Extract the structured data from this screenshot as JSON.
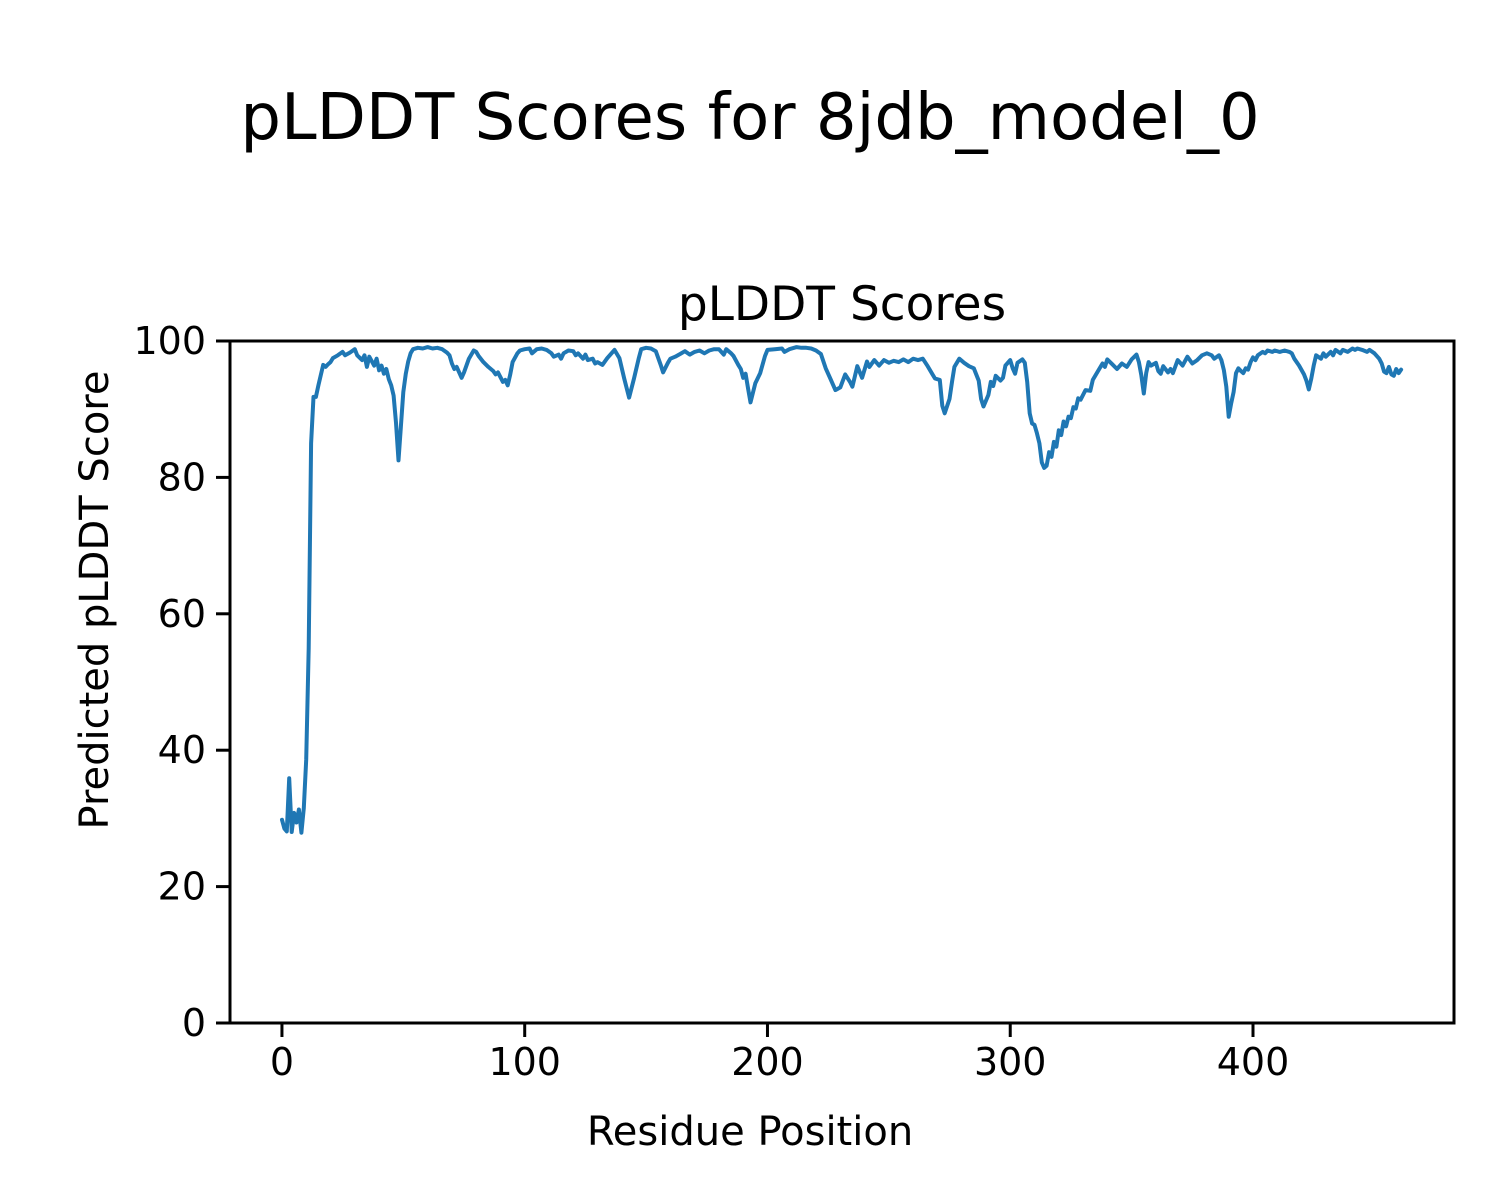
{
  "figure": {
    "title": "pLDDT Scores for 8jdb_model_0",
    "background_color": "#ffffff",
    "text_color": "#000000"
  },
  "chart_data": {
    "type": "line",
    "title": "pLDDT Scores",
    "xlabel": "Residue Position",
    "ylabel": "Predicted pLDDT Score",
    "xlim": [
      -21.4,
      482.8
    ],
    "ylim": [
      0,
      100
    ],
    "xticks": [
      0,
      100,
      200,
      300,
      400
    ],
    "yticks": [
      0,
      20,
      40,
      60,
      80,
      100
    ],
    "grid": false,
    "legend": false,
    "axes_color": "#000000",
    "tick_length": 14,
    "series": [
      {
        "name": "pLDDT",
        "color": "#1f77b4",
        "line_width": 4,
        "points": [
          [
            0,
            29.8
          ],
          [
            1,
            28.5
          ],
          [
            2,
            28.1
          ],
          [
            3,
            35.9
          ],
          [
            4,
            28.0
          ],
          [
            5,
            30.8
          ],
          [
            6,
            29.4
          ],
          [
            7,
            31.3
          ],
          [
            8,
            27.9
          ],
          [
            9,
            31.5
          ],
          [
            10,
            38.6
          ],
          [
            11,
            55.0
          ],
          [
            12,
            85.0
          ],
          [
            13,
            91.8
          ],
          [
            14,
            91.8
          ],
          [
            15,
            93.5
          ],
          [
            16,
            95.0
          ],
          [
            17,
            96.5
          ],
          [
            18,
            96.2
          ],
          [
            19,
            96.6
          ],
          [
            20,
            96.9
          ],
          [
            21,
            97.5
          ],
          [
            23,
            97.9
          ],
          [
            25,
            98.4
          ],
          [
            26,
            97.9
          ],
          [
            28,
            98.3
          ],
          [
            30,
            98.8
          ],
          [
            31,
            97.9
          ],
          [
            33,
            97.2
          ],
          [
            34,
            97.9
          ],
          [
            35,
            96.2
          ],
          [
            36,
            97.7
          ],
          [
            38,
            96.4
          ],
          [
            39,
            97.4
          ],
          [
            40,
            95.7
          ],
          [
            41,
            96.4
          ],
          [
            42,
            95.2
          ],
          [
            43,
            95.9
          ],
          [
            44,
            94.4
          ],
          [
            45,
            93.5
          ],
          [
            46,
            92.0
          ],
          [
            47,
            88.0
          ],
          [
            48,
            82.5
          ],
          [
            49,
            87.5
          ],
          [
            50,
            92.5
          ],
          [
            51,
            95.2
          ],
          [
            52,
            97.0
          ],
          [
            53,
            98.2
          ],
          [
            54,
            98.8
          ],
          [
            56,
            99.0
          ],
          [
            58,
            98.9
          ],
          [
            60,
            99.1
          ],
          [
            62,
            98.9
          ],
          [
            64,
            99.0
          ],
          [
            66,
            98.8
          ],
          [
            68,
            98.3
          ],
          [
            69,
            97.9
          ],
          [
            70,
            96.7
          ],
          [
            71,
            95.9
          ],
          [
            72,
            96.2
          ],
          [
            74,
            94.6
          ],
          [
            75,
            95.4
          ],
          [
            77,
            97.4
          ],
          [
            79,
            98.6
          ],
          [
            80,
            98.4
          ],
          [
            81,
            97.8
          ],
          [
            83,
            96.9
          ],
          [
            85,
            96.2
          ],
          [
            87,
            95.6
          ],
          [
            88,
            95.1
          ],
          [
            89,
            95.4
          ],
          [
            91,
            94.0
          ],
          [
            92,
            94.3
          ],
          [
            93,
            93.5
          ],
          [
            94,
            95.0
          ],
          [
            95,
            96.9
          ],
          [
            97,
            98.2
          ],
          [
            98,
            98.6
          ],
          [
            100,
            98.8
          ],
          [
            102,
            98.9
          ],
          [
            103,
            98.2
          ],
          [
            105,
            98.8
          ],
          [
            107,
            98.9
          ],
          [
            109,
            98.7
          ],
          [
            111,
            98.2
          ],
          [
            112,
            97.7
          ],
          [
            114,
            98.0
          ],
          [
            115,
            97.4
          ],
          [
            116,
            98.2
          ],
          [
            118,
            98.6
          ],
          [
            120,
            98.5
          ],
          [
            121,
            97.9
          ],
          [
            122,
            98.2
          ],
          [
            124,
            97.4
          ],
          [
            125,
            98.0
          ],
          [
            126,
            97.2
          ],
          [
            128,
            97.4
          ],
          [
            129,
            96.7
          ],
          [
            130,
            96.9
          ],
          [
            132,
            96.5
          ],
          [
            134,
            97.5
          ],
          [
            137,
            98.7
          ],
          [
            139,
            97.5
          ],
          [
            141,
            94.5
          ],
          [
            143,
            91.7
          ],
          [
            145,
            94.5
          ],
          [
            147,
            97.5
          ],
          [
            148,
            98.8
          ],
          [
            150,
            99.0
          ],
          [
            152,
            98.9
          ],
          [
            154,
            98.5
          ],
          [
            156,
            96.5
          ],
          [
            157,
            95.4
          ],
          [
            159,
            96.8
          ],
          [
            160,
            97.4
          ],
          [
            162,
            97.7
          ],
          [
            164,
            98.1
          ],
          [
            166,
            98.5
          ],
          [
            168,
            98.0
          ],
          [
            170,
            98.4
          ],
          [
            172,
            98.6
          ],
          [
            174,
            98.2
          ],
          [
            176,
            98.6
          ],
          [
            178,
            98.8
          ],
          [
            180,
            98.8
          ],
          [
            182,
            98.0
          ],
          [
            183,
            98.8
          ],
          [
            185,
            98.2
          ],
          [
            186,
            97.8
          ],
          [
            188,
            96.5
          ],
          [
            189,
            95.9
          ],
          [
            190,
            94.6
          ],
          [
            191,
            95.2
          ],
          [
            192,
            93.0
          ],
          [
            193,
            91.0
          ],
          [
            195,
            93.8
          ],
          [
            197,
            95.3
          ],
          [
            199,
            97.8
          ],
          [
            200,
            98.7
          ],
          [
            203,
            98.8
          ],
          [
            206,
            98.9
          ],
          [
            207,
            98.4
          ],
          [
            209,
            98.8
          ],
          [
            212,
            99.1
          ],
          [
            214,
            99.0
          ],
          [
            216,
            99.0
          ],
          [
            218,
            98.9
          ],
          [
            220,
            98.6
          ],
          [
            222,
            98.1
          ],
          [
            224,
            96.0
          ],
          [
            226,
            94.4
          ],
          [
            228,
            92.8
          ],
          [
            230,
            93.2
          ],
          [
            232,
            95.1
          ],
          [
            234,
            94.0
          ],
          [
            235,
            93.3
          ],
          [
            237,
            96.3
          ],
          [
            239,
            94.6
          ],
          [
            241,
            97.0
          ],
          [
            242,
            96.2
          ],
          [
            244,
            97.2
          ],
          [
            246,
            96.4
          ],
          [
            248,
            97.2
          ],
          [
            250,
            96.8
          ],
          [
            252,
            97.1
          ],
          [
            254,
            96.9
          ],
          [
            256,
            97.3
          ],
          [
            258,
            96.9
          ],
          [
            260,
            97.4
          ],
          [
            262,
            97.2
          ],
          [
            264,
            97.4
          ],
          [
            266,
            96.3
          ],
          [
            268,
            95.1
          ],
          [
            269,
            94.5
          ],
          [
            271,
            94.3
          ],
          [
            272,
            90.5
          ],
          [
            273,
            89.4
          ],
          [
            275,
            91.5
          ],
          [
            276,
            94.0
          ],
          [
            277,
            96.2
          ],
          [
            279,
            97.4
          ],
          [
            281,
            96.8
          ],
          [
            283,
            96.3
          ],
          [
            285,
            96.0
          ],
          [
            287,
            94.2
          ],
          [
            288,
            91.5
          ],
          [
            289,
            90.4
          ],
          [
            291,
            92.1
          ],
          [
            292,
            94.0
          ],
          [
            293,
            93.4
          ],
          [
            294,
            94.9
          ],
          [
            296,
            94.2
          ],
          [
            297,
            94.6
          ],
          [
            298,
            96.4
          ],
          [
            300,
            97.2
          ],
          [
            301,
            96.0
          ],
          [
            302,
            95.2
          ],
          [
            303,
            96.8
          ],
          [
            305,
            97.3
          ],
          [
            306,
            96.8
          ],
          [
            307,
            94.0
          ],
          [
            308,
            89.4
          ],
          [
            309,
            87.9
          ],
          [
            310,
            87.7
          ],
          [
            311,
            86.5
          ],
          [
            312,
            85.0
          ],
          [
            313,
            82.2
          ],
          [
            314,
            81.4
          ],
          [
            315,
            81.7
          ],
          [
            316,
            83.7
          ],
          [
            317,
            83.0
          ],
          [
            318,
            85.2
          ],
          [
            319,
            84.5
          ],
          [
            320,
            86.9
          ],
          [
            321,
            86.2
          ],
          [
            322,
            88.2
          ],
          [
            323,
            87.5
          ],
          [
            324,
            88.9
          ],
          [
            325,
            88.7
          ],
          [
            326,
            90.3
          ],
          [
            327,
            90.1
          ],
          [
            328,
            91.6
          ],
          [
            329,
            91.4
          ],
          [
            331,
            92.8
          ],
          [
            333,
            92.7
          ],
          [
            334,
            94.3
          ],
          [
            336,
            95.5
          ],
          [
            338,
            96.7
          ],
          [
            339,
            96.2
          ],
          [
            340,
            97.3
          ],
          [
            342,
            96.6
          ],
          [
            344,
            95.9
          ],
          [
            346,
            96.7
          ],
          [
            348,
            96.2
          ],
          [
            350,
            97.3
          ],
          [
            352,
            98.0
          ],
          [
            353,
            96.9
          ],
          [
            354,
            95.0
          ],
          [
            355,
            92.3
          ],
          [
            356,
            95.3
          ],
          [
            357,
            96.9
          ],
          [
            358,
            96.4
          ],
          [
            360,
            96.8
          ],
          [
            361,
            95.6
          ],
          [
            362,
            95.2
          ],
          [
            363,
            96.3
          ],
          [
            365,
            95.4
          ],
          [
            366,
            95.9
          ],
          [
            367,
            95.3
          ],
          [
            369,
            97.2
          ],
          [
            371,
            96.4
          ],
          [
            373,
            97.7
          ],
          [
            375,
            96.7
          ],
          [
            377,
            97.2
          ],
          [
            379,
            97.9
          ],
          [
            381,
            98.2
          ],
          [
            383,
            97.9
          ],
          [
            384,
            97.4
          ],
          [
            386,
            97.9
          ],
          [
            387,
            97.2
          ],
          [
            388,
            95.7
          ],
          [
            389,
            93.3
          ],
          [
            390,
            88.9
          ],
          [
            391,
            90.8
          ],
          [
            392,
            92.5
          ],
          [
            393,
            95.3
          ],
          [
            394,
            96.0
          ],
          [
            395,
            95.6
          ],
          [
            396,
            95.3
          ],
          [
            397,
            96.0
          ],
          [
            398,
            95.8
          ],
          [
            399,
            96.9
          ],
          [
            400,
            97.6
          ],
          [
            401,
            97.2
          ],
          [
            402,
            97.9
          ],
          [
            404,
            98.4
          ],
          [
            405,
            98.2
          ],
          [
            406,
            98.6
          ],
          [
            408,
            98.4
          ],
          [
            409,
            98.6
          ],
          [
            411,
            98.4
          ],
          [
            413,
            98.6
          ],
          [
            415,
            98.4
          ],
          [
            416,
            98.2
          ],
          [
            417,
            97.4
          ],
          [
            419,
            96.4
          ],
          [
            421,
            95.1
          ],
          [
            422,
            94.2
          ],
          [
            423,
            92.9
          ],
          [
            424,
            94.5
          ],
          [
            425,
            96.4
          ],
          [
            426,
            97.9
          ],
          [
            428,
            97.4
          ],
          [
            429,
            98.2
          ],
          [
            430,
            97.7
          ],
          [
            432,
            98.4
          ],
          [
            433,
            97.9
          ],
          [
            434,
            98.7
          ],
          [
            436,
            98.2
          ],
          [
            437,
            98.7
          ],
          [
            439,
            98.4
          ],
          [
            441,
            98.9
          ],
          [
            442,
            98.7
          ],
          [
            443,
            98.9
          ],
          [
            445,
            98.7
          ],
          [
            447,
            98.4
          ],
          [
            448,
            98.7
          ],
          [
            450,
            98.2
          ],
          [
            452,
            97.4
          ],
          [
            453,
            96.7
          ],
          [
            454,
            95.5
          ],
          [
            455,
            95.3
          ],
          [
            456,
            96.2
          ],
          [
            457,
            95.1
          ],
          [
            458,
            94.9
          ],
          [
            459,
            95.9
          ],
          [
            460,
            95.3
          ],
          [
            461,
            95.8
          ]
        ]
      }
    ]
  }
}
